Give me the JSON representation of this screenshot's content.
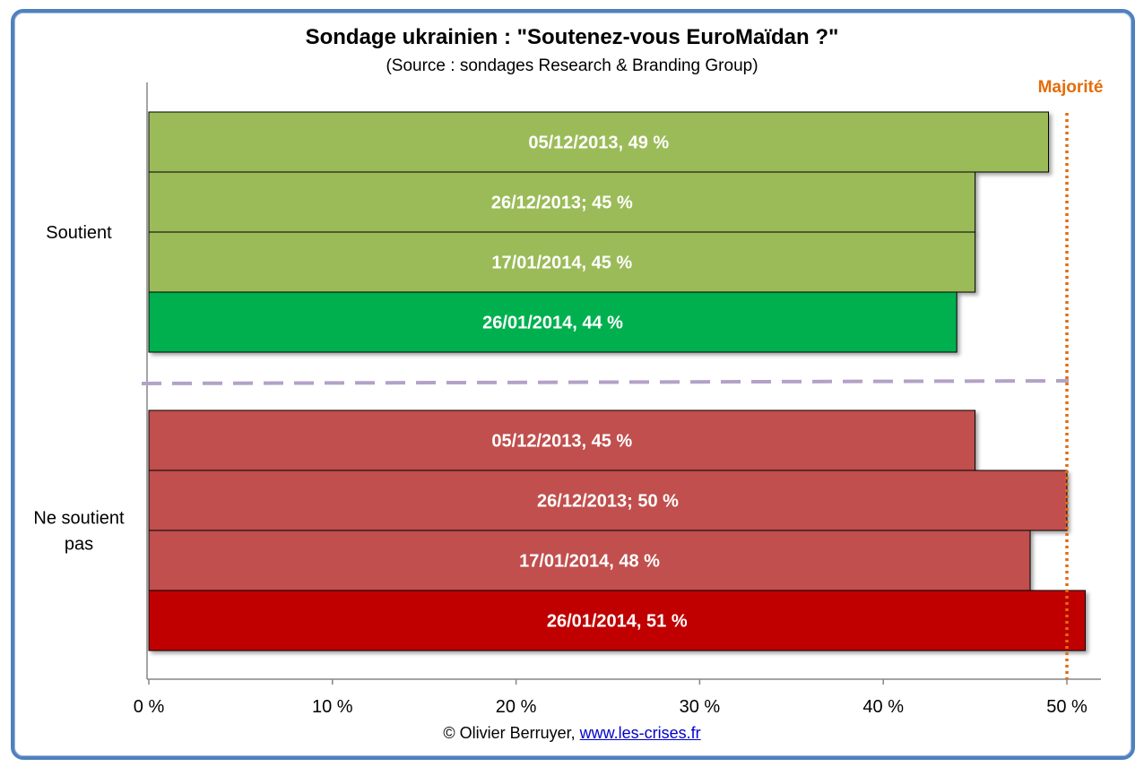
{
  "chart_data": {
    "type": "bar",
    "orientation": "horizontal",
    "title": "Sondage ukrainien : \"Soutenez-vous EuroMaïdan ?\"",
    "subtitle": "(Source : sondages Research & Branding Group)",
    "xlabel": "",
    "ylabel": "",
    "xlim": [
      0,
      52
    ],
    "x_ticks": [
      0,
      10,
      20,
      30,
      40,
      50
    ],
    "x_tick_labels": [
      "0 %",
      "10 %",
      "20 %",
      "30 %",
      "40 %",
      "50 %"
    ],
    "groups": [
      {
        "name": "Soutient",
        "label_lines": [
          "Soutient"
        ],
        "bars": [
          {
            "date": "05/12/2013",
            "value": 49,
            "label": "05/12/2013, 49 %",
            "color": "#9bbb59"
          },
          {
            "date": "26/12/2013",
            "value": 45,
            "label": "26/12/2013; 45 %",
            "color": "#9bbb59"
          },
          {
            "date": "17/01/2014",
            "value": 45,
            "label": "17/01/2014, 45 %",
            "color": "#9bbb59"
          },
          {
            "date": "26/01/2014",
            "value": 44,
            "label": "26/01/2014, 44 %",
            "color": "#00b050"
          }
        ]
      },
      {
        "name": "Ne soutient pas",
        "label_lines": [
          "Ne soutient",
          "pas"
        ],
        "bars": [
          {
            "date": "05/12/2013",
            "value": 45,
            "label": "05/12/2013, 45 %",
            "color": "#c0504d"
          },
          {
            "date": "26/12/2013",
            "value": 50,
            "label": "26/12/2013; 50 %",
            "color": "#c0504d"
          },
          {
            "date": "17/01/2014",
            "value": 48,
            "label": "17/01/2014, 48 %",
            "color": "#c0504d"
          },
          {
            "date": "26/01/2014",
            "value": 51,
            "label": "26/01/2014, 51 %",
            "color": "#c00000"
          }
        ]
      }
    ],
    "reference_line": {
      "value": 50,
      "label": "Majorité",
      "color": "#e46c0a",
      "style": "dotted"
    },
    "separator": {
      "color": "#b3a2c7",
      "style": "dashed"
    },
    "grid": false,
    "legend": "none"
  },
  "footer": {
    "credit_text": "© Olivier Berruyer,",
    "credit_link": "www.les-crises.fr"
  }
}
